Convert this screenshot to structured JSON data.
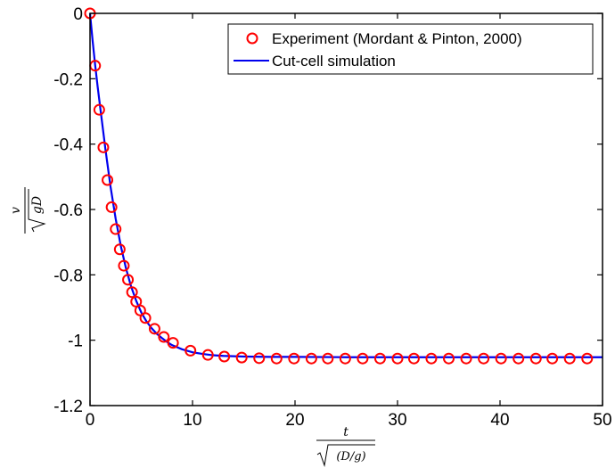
{
  "chart_data": {
    "type": "line",
    "title": "",
    "xlabel": {
      "numerator": "t",
      "denominator": "(D/g)"
    },
    "ylabel": {
      "numerator": "v",
      "denominator": "gD"
    },
    "xlim": [
      0,
      50
    ],
    "ylim": [
      -1.2,
      0
    ],
    "x_ticks": [
      0,
      10,
      20,
      30,
      40,
      50
    ],
    "x_tick_labels": [
      "0",
      "10",
      "20",
      "30",
      "40",
      "50"
    ],
    "y_ticks": [
      0,
      -0.2,
      -0.4,
      -0.6,
      -0.8,
      -1,
      -1.2
    ],
    "y_tick_labels": [
      "0",
      "-0.2",
      "-0.4",
      "-0.6",
      "-0.8",
      "-1",
      "-1.2"
    ],
    "grid": false,
    "legend_position": "top-right",
    "series": [
      {
        "name": "Experiment (Mordant & Pinton, 2000)",
        "style": "markers",
        "marker": "circle",
        "color": "#ff0000",
        "x": [
          0,
          0.5,
          0.9,
          1.3,
          1.7,
          2.1,
          2.5,
          2.9,
          3.3,
          3.7,
          4.1,
          4.5,
          4.9,
          5.4,
          6.3,
          7.2,
          8.1,
          9.8,
          11.5,
          13.1,
          14.8,
          16.5,
          18.2,
          19.9,
          21.6,
          23.2,
          24.9,
          26.6,
          28.3,
          30.0,
          31.6,
          33.3,
          35.0,
          36.7,
          38.4,
          40.1,
          41.8,
          43.5,
          45.1,
          46.8,
          48.5
        ],
        "y": [
          0,
          -0.16,
          -0.295,
          -0.41,
          -0.51,
          -0.593,
          -0.66,
          -0.722,
          -0.772,
          -0.815,
          -0.853,
          -0.882,
          -0.909,
          -0.932,
          -0.965,
          -0.99,
          -1.008,
          -1.032,
          -1.045,
          -1.05,
          -1.053,
          -1.055,
          -1.056,
          -1.056,
          -1.056,
          -1.056,
          -1.056,
          -1.056,
          -1.056,
          -1.056,
          -1.056,
          -1.056,
          -1.056,
          -1.056,
          -1.056,
          -1.056,
          -1.056,
          -1.056,
          -1.056,
          -1.056,
          -1.056
        ]
      },
      {
        "name": "Cut-cell simulation",
        "style": "line",
        "color": "#0000ee",
        "x": [
          0,
          0.25,
          0.5,
          0.75,
          1.0,
          1.5,
          2.0,
          2.5,
          3.0,
          3.5,
          4.0,
          4.5,
          5.0,
          5.5,
          6.0,
          6.5,
          7.0,
          7.5,
          8.0,
          9.0,
          10.0,
          11.0,
          12.0,
          13.0,
          14.0,
          15.0,
          17.5,
          20.0,
          25.0,
          30.0,
          35.0,
          40.0,
          45.0,
          50.0
        ],
        "y": [
          0,
          -0.083,
          -0.158,
          -0.226,
          -0.289,
          -0.415,
          -0.53,
          -0.628,
          -0.711,
          -0.779,
          -0.835,
          -0.879,
          -0.915,
          -0.942,
          -0.963,
          -0.98,
          -0.993,
          -1.005,
          -1.015,
          -1.028,
          -1.037,
          -1.042,
          -1.046,
          -1.048,
          -1.049,
          -1.05,
          -1.051,
          -1.051,
          -1.052,
          -1.052,
          -1.052,
          -1.052,
          -1.052,
          -1.052
        ]
      }
    ]
  }
}
